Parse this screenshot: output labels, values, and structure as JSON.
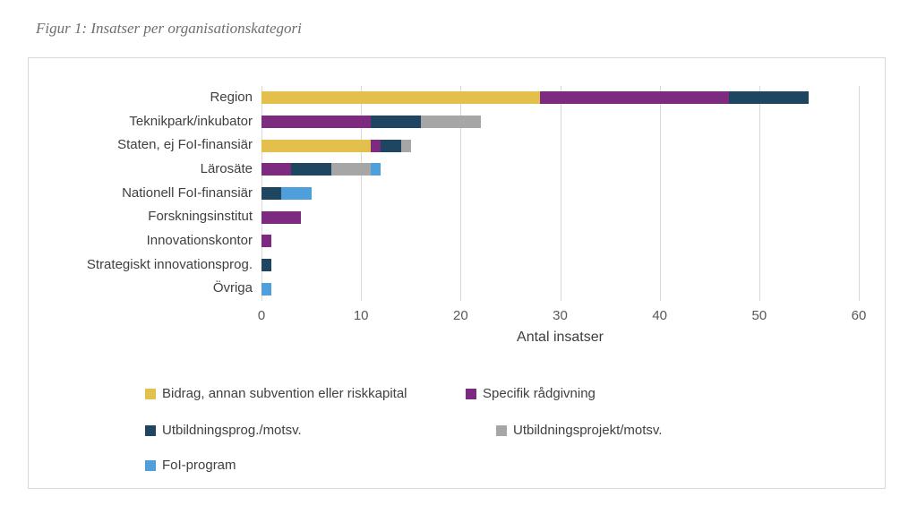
{
  "figure_title": "Figur 1: Insatser per organisationskategori",
  "chart_data": {
    "type": "bar",
    "orientation": "horizontal",
    "stacked": true,
    "title": "Figur 1: Insatser per organisationskategori",
    "xlabel": "Antal insatser",
    "ylabel": "",
    "xlim": [
      0,
      60
    ],
    "xticks": [
      0,
      10,
      20,
      30,
      40,
      50,
      60
    ],
    "grid": true,
    "legend_position": "bottom",
    "categories": [
      "Region",
      "Teknikpark/inkubator",
      "Staten, ej FoI-finansiär",
      "Lärosäte",
      "Nationell FoI-finansiär",
      "Forskningsinstitut",
      "Innovationskontor",
      "Strategiskt innovationsprog.",
      "Övriga"
    ],
    "series": [
      {
        "name": "Bidrag, annan subvention eller riskkapital",
        "color": "#e3c04b",
        "values": [
          28,
          0,
          11,
          0,
          0,
          0,
          0,
          0,
          0
        ]
      },
      {
        "name": "Specifik rådgivning",
        "color": "#7d2b81",
        "values": [
          19,
          11,
          1,
          3,
          0,
          4,
          1,
          0,
          0
        ]
      },
      {
        "name": "Utbildningsprog./motsv.",
        "color": "#1f4661",
        "values": [
          8,
          5,
          2,
          4,
          2,
          0,
          0,
          1,
          0
        ]
      },
      {
        "name": "Utbildningsprojekt/motsv.",
        "color": "#a6a6a6",
        "values": [
          0,
          6,
          1,
          4,
          0,
          0,
          0,
          0,
          0
        ]
      },
      {
        "name": "FoI-program",
        "color": "#4fa0da",
        "values": [
          0,
          0,
          0,
          1,
          3,
          0,
          0,
          0,
          1
        ]
      }
    ],
    "category_totals": [
      55,
      22,
      15,
      12,
      5,
      4,
      1,
      1,
      1
    ]
  }
}
